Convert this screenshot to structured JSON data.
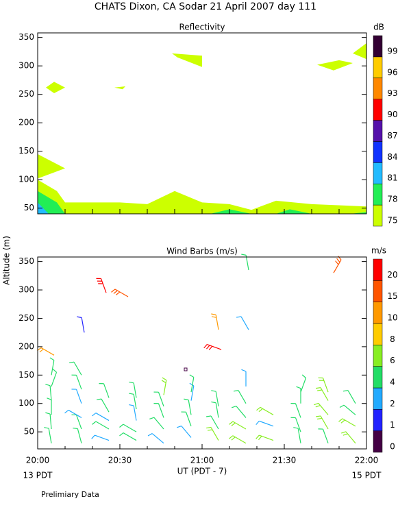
{
  "page": {
    "title": "CHATS Dixon, CA  Sodar  21 April 2007  day 111",
    "ylabel": "Altitude (m)",
    "xlabel": "UT  (PDT - 7)",
    "left_note": "13 PDT",
    "right_note": "15 PDT",
    "footer": "Prelimiary Data"
  },
  "chart_data": [
    {
      "type": "contour",
      "title": "Reflectivity",
      "xlim": [
        0,
        120
      ],
      "xticks": [
        0,
        10,
        20,
        30,
        40,
        50,
        60,
        70,
        80,
        90,
        100,
        110,
        120
      ],
      "ylim": [
        40,
        358
      ],
      "yticks": [
        50,
        100,
        150,
        200,
        250,
        300,
        350
      ],
      "colorbar": {
        "label": "dB",
        "levels": [
          75,
          78,
          81,
          84,
          87,
          90,
          93,
          96,
          99
        ],
        "colors": [
          "#ccff00",
          "#22ee55",
          "#22bbff",
          "#1133ff",
          "#5511aa",
          "#ff0000",
          "#ff8800",
          "#ffcc00",
          "#330033"
        ]
      },
      "regions": [
        {
          "level": 75,
          "x": [
            0,
            7,
            10,
            30,
            40,
            50,
            60,
            70,
            78,
            87,
            100,
            120,
            120,
            0
          ],
          "y": [
            100,
            80,
            60,
            60,
            57,
            80,
            60,
            57,
            47,
            63,
            57,
            53,
            40,
            40
          ]
        },
        {
          "level": 75,
          "x": [
            0,
            10,
            0
          ],
          "y": [
            145,
            120,
            102
          ]
        },
        {
          "level": 75,
          "x": [
            3,
            6,
            10,
            6
          ],
          "y": [
            262,
            272,
            262,
            252
          ]
        },
        {
          "level": 75,
          "x": [
            28,
            32,
            31
          ],
          "y": [
            262,
            264,
            259
          ]
        },
        {
          "level": 75,
          "x": [
            49,
            60,
            60,
            51
          ],
          "y": [
            322,
            318,
            298,
            315
          ]
        },
        {
          "level": 75,
          "x": [
            102,
            110,
            115,
            108
          ],
          "y": [
            302,
            310,
            305,
            292
          ]
        },
        {
          "level": 75,
          "x": [
            115,
            120,
            120
          ],
          "y": [
            322,
            340,
            312
          ]
        },
        {
          "level": 78,
          "x": [
            0,
            7,
            10,
            0
          ],
          "y": [
            80,
            60,
            40,
            40
          ]
        },
        {
          "level": 78,
          "x": [
            63,
            70,
            78
          ],
          "y": [
            40,
            48,
            40
          ]
        },
        {
          "level": 78,
          "x": [
            87,
            92,
            100
          ],
          "y": [
            40,
            48,
            40
          ]
        },
        {
          "level": 78,
          "x": [
            114,
            120,
            120
          ],
          "y": [
            40,
            43,
            40
          ]
        },
        {
          "level": 81,
          "x": [
            0,
            4,
            0
          ],
          "y": [
            60,
            40,
            40
          ]
        }
      ]
    },
    {
      "type": "barbs",
      "title": "Wind Barbs (m/s)",
      "xlim": [
        0,
        120
      ],
      "xticks": [
        {
          "value": 0,
          "label": "20:00"
        },
        {
          "value": 30,
          "label": "20:30"
        },
        {
          "value": 60,
          "label": "21:00"
        },
        {
          "value": 90,
          "label": "21:30"
        },
        {
          "value": 120,
          "label": "22:00"
        }
      ],
      "xminorticks": [
        10,
        20,
        40,
        50,
        70,
        80,
        100,
        110
      ],
      "ylim": [
        20,
        358
      ],
      "yticks": [
        50,
        100,
        150,
        200,
        250,
        300,
        350
      ],
      "colorbar": {
        "label": "m/s",
        "levels": [
          0,
          1,
          2,
          4,
          6,
          8,
          10,
          15,
          20
        ],
        "colors": [
          "#440044",
          "#2222ff",
          "#22aaff",
          "#22dd66",
          "#88ee22",
          "#ffcc00",
          "#ff9900",
          "#ff5500",
          "#ff0000"
        ]
      },
      "x": [
        5,
        5,
        5,
        5,
        5,
        5,
        16,
        16,
        16,
        16,
        16,
        16,
        26,
        26,
        26,
        26,
        26,
        36,
        36,
        36,
        36,
        36,
        46,
        46,
        46,
        46,
        46,
        56,
        56,
        56,
        56,
        56,
        66,
        66,
        66,
        66,
        76,
        76,
        76,
        76,
        76,
        86,
        86,
        86,
        96,
        96,
        96,
        96,
        96,
        106,
        106,
        106,
        106,
        106,
        116,
        116,
        116,
        116,
        6,
        17,
        25,
        33,
        54,
        66,
        67,
        77,
        77,
        108
      ],
      "y": [
        30,
        55,
        80,
        105,
        130,
        150,
        30,
        55,
        75,
        100,
        125,
        150,
        35,
        55,
        70,
        85,
        110,
        35,
        50,
        70,
        90,
        110,
        30,
        55,
        75,
        95,
        115,
        40,
        60,
        80,
        105,
        120,
        35,
        55,
        75,
        95,
        30,
        55,
        75,
        100,
        130,
        35,
        60,
        80,
        30,
        50,
        75,
        100,
        120,
        30,
        55,
        80,
        105,
        120,
        30,
        60,
        80,
        100,
        185,
        225,
        295,
        288,
        160,
        230,
        195,
        335,
        230,
        330
      ],
      "speed": [
        4,
        4,
        4,
        4,
        4,
        4,
        4,
        4,
        2,
        2,
        4,
        4,
        2,
        4,
        2,
        4,
        4,
        4,
        4,
        2,
        4,
        4,
        2,
        4,
        4,
        4,
        6,
        2,
        4,
        4,
        2,
        4,
        6,
        4,
        4,
        4,
        6,
        6,
        4,
        4,
        2,
        6,
        2,
        6,
        4,
        4,
        4,
        4,
        4,
        4,
        6,
        6,
        6,
        6,
        6,
        6,
        4,
        4,
        10,
        1,
        20,
        15,
        0,
        10,
        20,
        4,
        2,
        15
      ],
      "direction": [
        350,
        355,
        0,
        355,
        20,
        10,
        345,
        340,
        300,
        340,
        340,
        330,
        290,
        300,
        300,
        330,
        340,
        300,
        300,
        350,
        350,
        350,
        310,
        320,
        340,
        340,
        10,
        320,
        340,
        350,
        10,
        10,
        330,
        330,
        350,
        350,
        300,
        300,
        320,
        330,
        0,
        290,
        290,
        300,
        350,
        340,
        340,
        0,
        20,
        340,
        330,
        320,
        330,
        340,
        320,
        300,
        310,
        330,
        300,
        350,
        340,
        300,
        0,
        350,
        290,
        350,
        330,
        30
      ]
    }
  ]
}
